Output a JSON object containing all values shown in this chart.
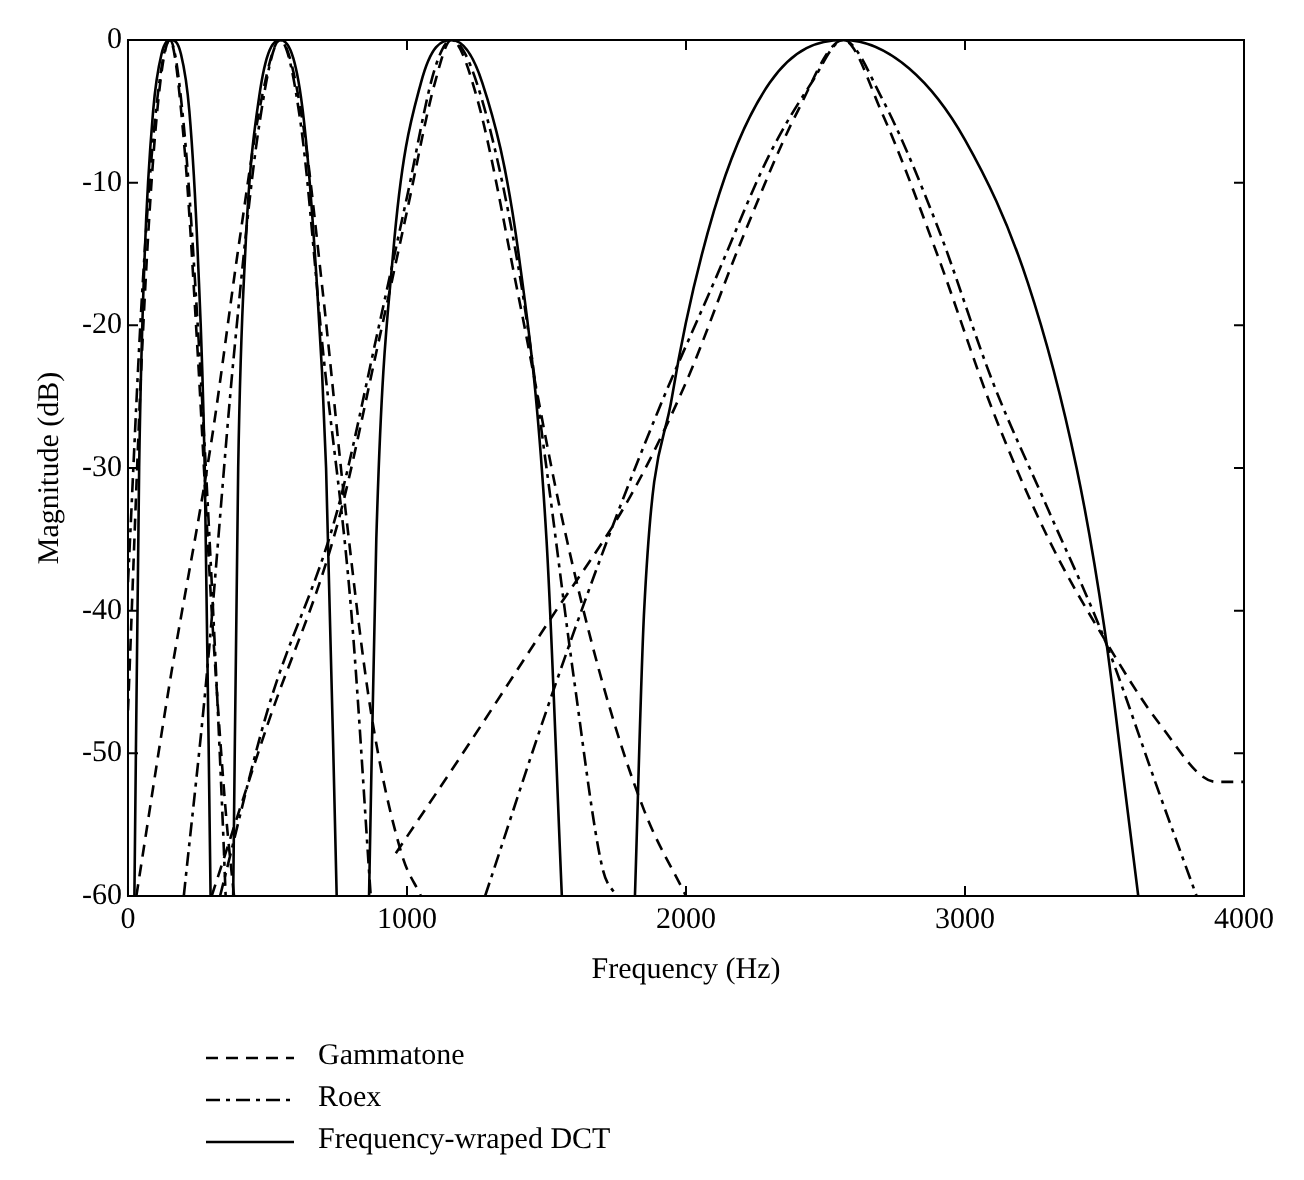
{
  "chart_data": {
    "type": "line",
    "xlabel": "Frequency (Hz)",
    "ylabel": "Magnitude (dB)",
    "xlim": [
      0,
      4000
    ],
    "xticks": [
      0,
      1000,
      2000,
      3000,
      4000
    ],
    "ylim": [
      -60,
      0
    ],
    "yticks": [
      -60,
      -50,
      -40,
      -30,
      -20,
      -10,
      0
    ],
    "grid": false,
    "legend": "bottom left",
    "marker": "none",
    "series": [
      {
        "name": "Gammatone",
        "color": "#000000",
        "line_style": "dashed",
        "x": [
          0,
          50,
          100,
          150,
          200,
          250,
          300,
          350,
          380
        ],
        "values": [
          -47,
          -22,
          -6,
          0,
          -7,
          -22,
          -40,
          -54,
          -60
        ]
      },
      {
        "color": "#000000",
        "line_style": "dashed",
        "x": [
          30,
          150,
          300,
          400,
          480,
          545,
          620,
          700,
          780,
          870,
          980,
          1050
        ],
        "values": [
          -60,
          -45,
          -28,
          -14,
          -4,
          0,
          -5,
          -18,
          -33,
          -47,
          -57,
          -60
        ]
      },
      {
        "color": "#000000",
        "line_style": "dashed",
        "x": [
          300,
          500,
          750,
          900,
          1000,
          1100,
          1159,
          1250,
          1400,
          1550,
          1700,
          1850,
          2000
        ],
        "values": [
          -60,
          -48,
          -34,
          -21,
          -12,
          -3,
          0,
          -4,
          -18,
          -33,
          -45,
          -54,
          -60
        ]
      },
      {
        "color": "#000000",
        "line_style": "dashed",
        "x": [
          960,
          1200,
          1500,
          1800,
          2000,
          2200,
          2400,
          2564,
          2700,
          2900,
          3100,
          3300,
          3500,
          3700,
          3900,
          4000
        ],
        "values": [
          -57,
          -50,
          -41,
          -32,
          -24,
          -14,
          -5,
          0,
          -5,
          -15,
          -26,
          -35,
          -42,
          -48,
          -52,
          -52
        ]
      },
      {
        "name": "Roex",
        "color": "#000000",
        "line_style": "dashdot",
        "x": [
          0,
          50,
          100,
          150,
          200,
          250,
          300,
          340,
          350
        ],
        "values": [
          -38,
          -18,
          -5,
          0,
          -6,
          -20,
          -38,
          -55,
          -60
        ]
      },
      {
        "color": "#000000",
        "line_style": "dashdot",
        "x": [
          200,
          280,
          380,
          470,
          545,
          620,
          700,
          800,
          870
        ],
        "values": [
          -60,
          -45,
          -22,
          -6,
          0,
          -6,
          -22,
          -40,
          -60
        ]
      },
      {
        "color": "#000000",
        "line_style": "dashdot",
        "x": [
          330,
          500,
          750,
          900,
          1000,
          1100,
          1159,
          1250,
          1400,
          1500,
          1600,
          1700,
          1750
        ],
        "values": [
          -60,
          -47,
          -33,
          -20,
          -11,
          -2,
          0,
          -3,
          -16,
          -30,
          -45,
          -58,
          -60
        ]
      },
      {
        "color": "#000000",
        "line_style": "dashdot",
        "x": [
          1280,
          1500,
          1700,
          1900,
          2100,
          2300,
          2450,
          2564,
          2700,
          2900,
          3100,
          3300,
          3500,
          3700,
          3830
        ],
        "values": [
          -60,
          -47,
          -36,
          -26,
          -17,
          -8,
          -3,
          0,
          -4,
          -13,
          -24,
          -33,
          -42,
          -53,
          -60
        ]
      },
      {
        "name": "Frequency-wraped DCT",
        "color": "#000000",
        "line_style": "solid",
        "x": [
          23,
          40,
          60,
          90,
          120,
          154,
          190,
          220,
          250,
          275,
          296
        ],
        "values": [
          -60,
          -30,
          -15,
          -5,
          -1,
          0,
          -1,
          -5,
          -15,
          -30,
          -60
        ]
      },
      {
        "color": "#000000",
        "line_style": "solid",
        "x": [
          377,
          395,
          420,
          470,
          545,
          620,
          670,
          710,
          748
        ],
        "values": [
          -60,
          -30,
          -15,
          -4,
          0,
          -4,
          -15,
          -30,
          -60
        ]
      },
      {
        "color": "#000000",
        "line_style": "solid",
        "x": [
          864,
          890,
          950,
          1050,
          1159,
          1270,
          1400,
          1500,
          1555
        ],
        "values": [
          -60,
          -35,
          -15,
          -3,
          0,
          -3,
          -15,
          -35,
          -60
        ]
      },
      {
        "color": "#000000",
        "line_style": "solid",
        "x": [
          1817,
          1850,
          1950,
          2100,
          2300,
          2564,
          2800,
          3000,
          3225,
          3400,
          3498,
          3570,
          3621
        ],
        "values": [
          -60,
          -40,
          -25,
          -12,
          -3,
          0,
          -2,
          -7,
          -17,
          -30,
          -41,
          -52,
          -60
        ]
      }
    ]
  }
}
